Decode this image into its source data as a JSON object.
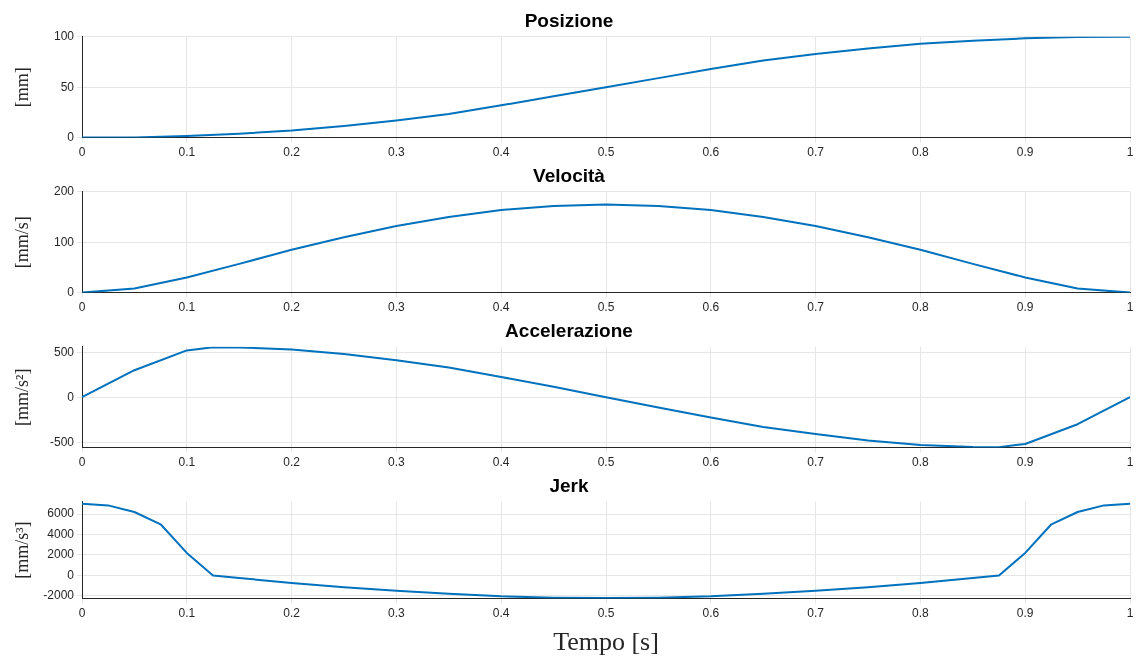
{
  "chart_data": [
    {
      "type": "line",
      "title": "Posizione",
      "ylabel": "[mm]",
      "color": "#0072bd",
      "grid": true,
      "legend": false,
      "marker": "none",
      "line_style": "solid",
      "xlim": [
        0,
        1
      ],
      "xticks": [
        0,
        0.1,
        0.2,
        0.3,
        0.4,
        0.5,
        0.6,
        0.7,
        0.8,
        0.9,
        1
      ],
      "ylim": [
        0,
        100
      ],
      "yticks": [
        0,
        50,
        100
      ],
      "x": [
        0,
        0.05,
        0.1,
        0.15,
        0.2,
        0.25,
        0.3,
        0.35,
        0.4,
        0.45,
        0.5,
        0.55,
        0.6,
        0.65,
        0.7,
        0.75,
        0.8,
        0.85,
        0.9,
        0.95,
        1
      ],
      "values": [
        0,
        0.2,
        1.5,
        3.8,
        7,
        11.5,
        17,
        23.5,
        32,
        41,
        50,
        59,
        68,
        76.5,
        83,
        88.5,
        93,
        96.2,
        98.5,
        99.8,
        100
      ]
    },
    {
      "type": "line",
      "title": "Velocità",
      "ylabel": "[mm/s]",
      "color": "#0072bd",
      "grid": true,
      "legend": false,
      "marker": "none",
      "line_style": "solid",
      "xlim": [
        0,
        1
      ],
      "xticks": [
        0,
        0.1,
        0.2,
        0.3,
        0.4,
        0.5,
        0.6,
        0.7,
        0.8,
        0.9,
        1
      ],
      "ylim": [
        0,
        200
      ],
      "yticks": [
        0,
        100,
        200
      ],
      "x": [
        0,
        0.05,
        0.1,
        0.15,
        0.2,
        0.25,
        0.3,
        0.35,
        0.4,
        0.45,
        0.5,
        0.55,
        0.6,
        0.65,
        0.7,
        0.75,
        0.8,
        0.85,
        0.9,
        0.95,
        1
      ],
      "values": [
        0,
        8,
        30,
        57,
        85,
        110,
        132,
        150,
        164,
        172,
        175,
        172,
        164,
        150,
        132,
        110,
        85,
        57,
        30,
        8,
        0
      ]
    },
    {
      "type": "line",
      "title": "Accelerazione",
      "ylabel": "[mm/s²]",
      "color": "#0072bd",
      "grid": true,
      "legend": false,
      "marker": "none",
      "line_style": "solid",
      "xlim": [
        0,
        1
      ],
      "xticks": [
        0,
        0.1,
        0.2,
        0.3,
        0.4,
        0.5,
        0.6,
        0.7,
        0.8,
        0.9,
        1
      ],
      "ylim": [
        -560,
        560
      ],
      "yticks": [
        -500,
        0,
        500
      ],
      "x": [
        0,
        0.05,
        0.1,
        0.125,
        0.15,
        0.2,
        0.25,
        0.3,
        0.35,
        0.4,
        0.45,
        0.5,
        0.55,
        0.6,
        0.65,
        0.7,
        0.75,
        0.8,
        0.85,
        0.875,
        0.9,
        0.95,
        1
      ],
      "values": [
        0,
        300,
        520,
        555,
        553,
        530,
        480,
        410,
        330,
        225,
        115,
        0,
        -115,
        -225,
        -330,
        -410,
        -480,
        -530,
        -553,
        -555,
        -520,
        -300,
        0
      ]
    },
    {
      "type": "line",
      "title": "Jerk",
      "ylabel": "[mm/s³]",
      "xlabel": "Tempo [s]",
      "color": "#0072bd",
      "grid": true,
      "legend": false,
      "marker": "none",
      "line_style": "solid",
      "xlim": [
        0,
        1
      ],
      "xticks": [
        0,
        0.1,
        0.2,
        0.3,
        0.4,
        0.5,
        0.6,
        0.7,
        0.8,
        0.9,
        1
      ],
      "ylim": [
        -2250,
        7200
      ],
      "yticks": [
        -2000,
        0,
        2000,
        4000,
        6000
      ],
      "x": [
        0,
        0.025,
        0.05,
        0.075,
        0.1,
        0.125,
        0.15,
        0.2,
        0.25,
        0.3,
        0.35,
        0.4,
        0.45,
        0.5,
        0.55,
        0.6,
        0.65,
        0.7,
        0.75,
        0.8,
        0.85,
        0.875,
        0.9,
        0.925,
        0.95,
        0.975,
        1
      ],
      "values": [
        7000,
        6850,
        6200,
        5000,
        2200,
        0,
        -250,
        -750,
        -1150,
        -1500,
        -1800,
        -2050,
        -2180,
        -2220,
        -2180,
        -2050,
        -1800,
        -1500,
        -1150,
        -750,
        -250,
        0,
        2200,
        5000,
        6200,
        6850,
        7000
      ]
    }
  ]
}
